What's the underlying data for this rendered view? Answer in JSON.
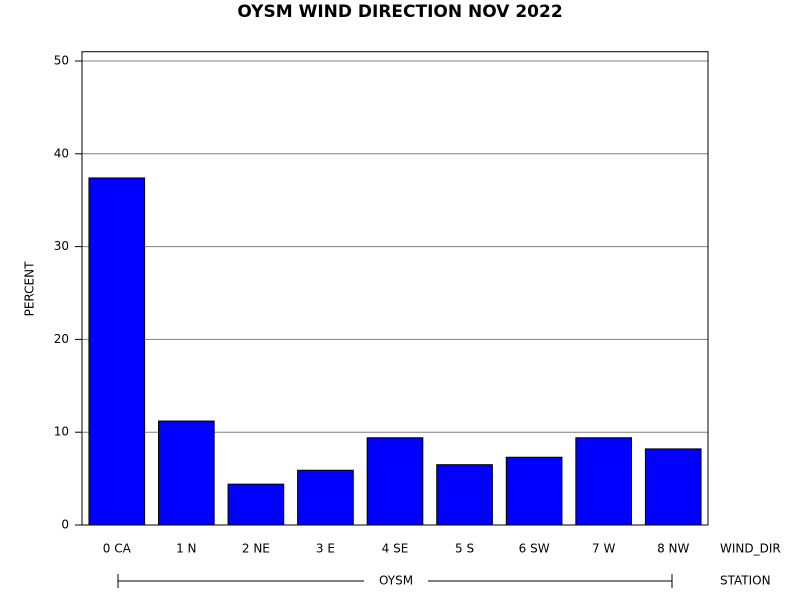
{
  "chart_data": {
    "type": "bar",
    "title": "OYSM WIND DIRECTION NOV 2022",
    "y_label": "PERCENT",
    "x_label": "WIND_DIR",
    "group_label": "STATION",
    "group": "OYSM",
    "categories": [
      "0 CA",
      "1 N",
      "2 NE",
      "3 E",
      "4 SE",
      "5 S",
      "6 SW",
      "7 W",
      "8 NW"
    ],
    "values": [
      37.4,
      11.2,
      4.4,
      5.9,
      9.4,
      6.5,
      7.3,
      9.4,
      8.2
    ],
    "color": "#0000ff",
    "ylim": [
      0,
      51
    ],
    "yticks": [
      0,
      10,
      20,
      30,
      40,
      50
    ],
    "grid": true
  }
}
